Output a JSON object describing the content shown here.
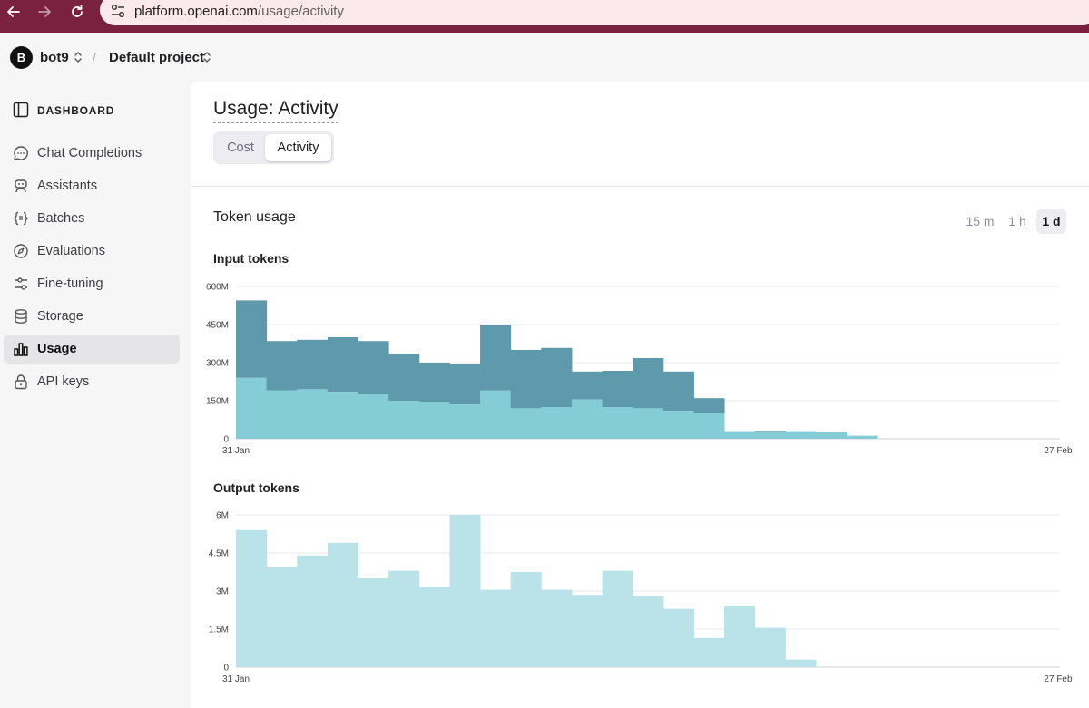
{
  "browser": {
    "url_host": "platform.openai.com",
    "url_path": "/usage/activity",
    "icons": [
      "back-arrow-icon",
      "forward-arrow-icon",
      "reload-icon",
      "site-settings-icon"
    ]
  },
  "header": {
    "avatar_letter": "B",
    "org_name": "bot9",
    "separator": "/",
    "project_name": "Default project"
  },
  "sidebar": {
    "dashboard_label": "DASHBOARD",
    "items": [
      {
        "label": "Chat Completions",
        "icon": "chat-bubble-icon"
      },
      {
        "label": "Assistants",
        "icon": "robot-icon"
      },
      {
        "label": "Batches",
        "icon": "braces-icon"
      },
      {
        "label": "Evaluations",
        "icon": "compass-icon"
      },
      {
        "label": "Fine-tuning",
        "icon": "sliders-icon"
      },
      {
        "label": "Storage",
        "icon": "database-icon"
      },
      {
        "label": "Usage",
        "icon": "bar-chart-icon",
        "active": true
      },
      {
        "label": "API keys",
        "icon": "lock-icon"
      }
    ]
  },
  "main": {
    "title": "Usage: Activity",
    "tabs": [
      {
        "label": "Cost"
      },
      {
        "label": "Activity",
        "active": true
      }
    ],
    "section_title": "Token usage",
    "ranges": [
      {
        "label": "15 m"
      },
      {
        "label": "1 h"
      },
      {
        "label": "1 d",
        "active": true
      }
    ]
  },
  "chart_data": [
    {
      "type": "area",
      "title": "Input tokens",
      "x_start_label": "31 Jan",
      "x_end_label": "27 Feb",
      "y_ticks": [
        "0",
        "150M",
        "300M",
        "450M",
        "600M"
      ],
      "ylim": [
        0,
        600
      ],
      "y_unit": "M",
      "colors": {
        "lower": "#85cdd6",
        "upper": "#5f99ac"
      },
      "values_lower": [
        240,
        190,
        195,
        185,
        175,
        150,
        145,
        135,
        190,
        120,
        125,
        155,
        125,
        120,
        110,
        100,
        78,
        30,
        30,
        28,
        12,
        0,
        0,
        0,
        0,
        0,
        0
      ],
      "values_total": [
        545,
        385,
        390,
        400,
        385,
        335,
        300,
        295,
        450,
        350,
        358,
        265,
        268,
        318,
        265,
        160,
        30,
        32,
        30,
        28,
        12,
        0,
        0,
        0,
        0,
        0,
        0
      ]
    },
    {
      "type": "area",
      "title": "Output tokens",
      "x_start_label": "31 Jan",
      "x_end_label": "27 Feb",
      "y_ticks": [
        "0",
        "1.5M",
        "3M",
        "4.5M",
        "6M"
      ],
      "ylim": [
        0,
        6
      ],
      "y_unit": "M",
      "colors": {
        "fill": "#b9e3e9"
      },
      "values_total": [
        5.4,
        3.95,
        4.4,
        4.9,
        3.5,
        3.8,
        3.15,
        6.0,
        3.05,
        3.75,
        3.05,
        2.85,
        3.8,
        2.8,
        2.3,
        1.15,
        2.4,
        1.55,
        0.3,
        0,
        0,
        0,
        0,
        0,
        0,
        0,
        0
      ]
    }
  ]
}
